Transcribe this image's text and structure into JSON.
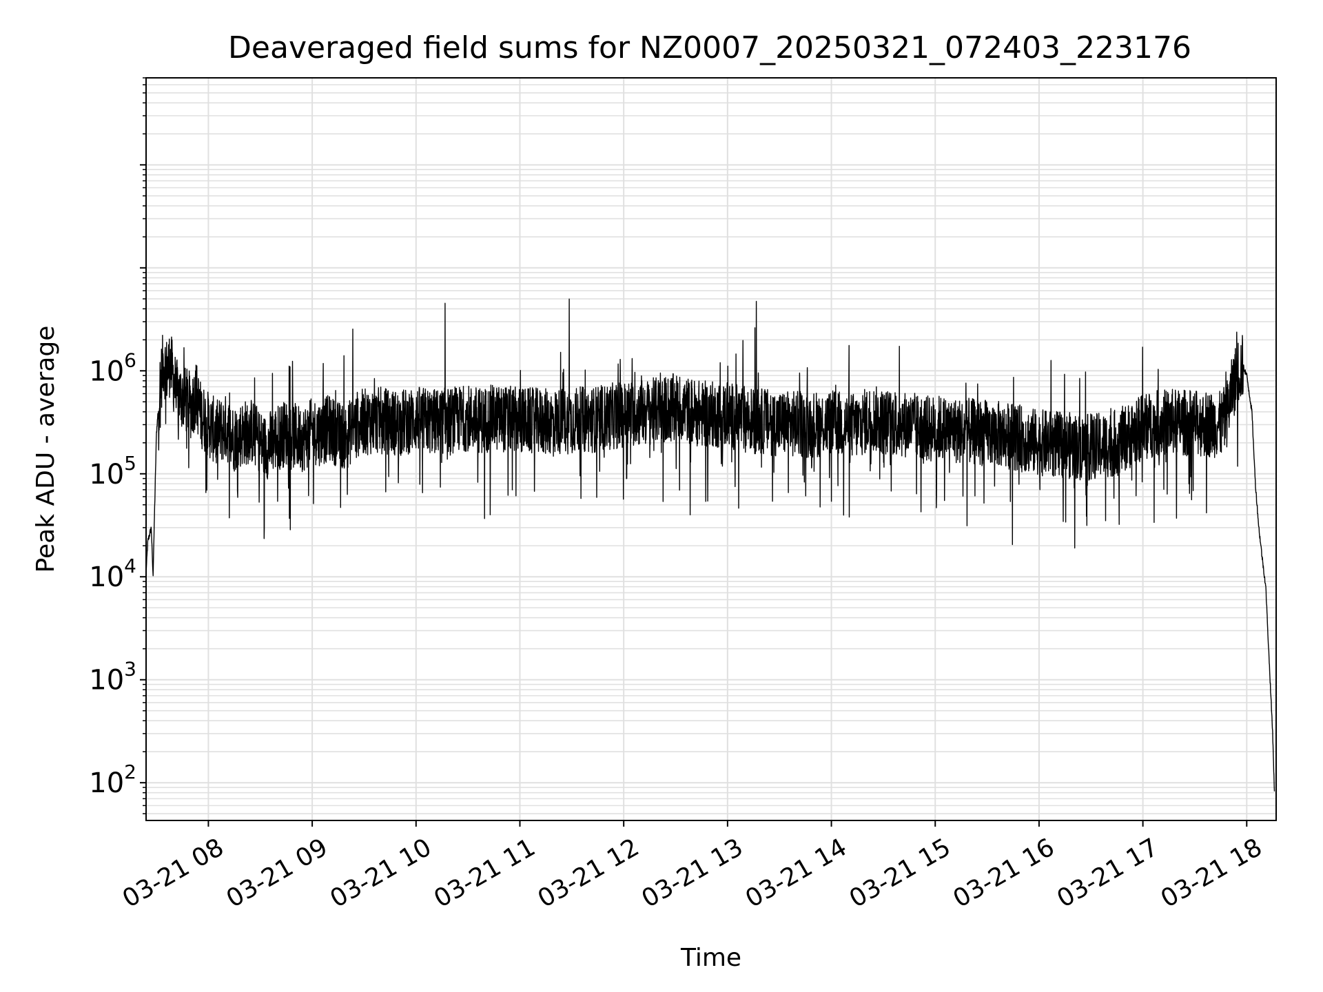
{
  "chart_data": {
    "type": "line",
    "title": "Deaveraged field sums for NZ0007_20250321_072403_223176",
    "xlabel": "Time",
    "ylabel": "Peak ADU - average",
    "y_scale": "log",
    "ylim": [
      43,
      700000000
    ],
    "xlim": [
      "03-21 07:24",
      "03-21 18:17"
    ],
    "grid": true,
    "line_color": "#000000",
    "grid_color": "#e0e0e0",
    "x_ticks": [
      "03-21 08",
      "03-21 09",
      "03-21 10",
      "03-21 11",
      "03-21 12",
      "03-21 13",
      "03-21 14",
      "03-21 15",
      "03-21 16",
      "03-21 17",
      "03-21 18"
    ],
    "y_ticks": [
      {
        "base": "10",
        "exp": "2",
        "value": 100
      },
      {
        "base": "10",
        "exp": "3",
        "value": 1000
      },
      {
        "base": "10",
        "exp": "4",
        "value": 10000
      },
      {
        "base": "10",
        "exp": "5",
        "value": 100000
      },
      {
        "base": "10",
        "exp": "6",
        "value": 1000000
      }
    ],
    "series": [
      {
        "x": [
          "07:24",
          "07:25",
          "07:27",
          "07:28",
          "07:30",
          "07:32",
          "07:34",
          "07:36",
          "07:38",
          "07:40",
          "07:42",
          "07:45",
          "07:48",
          "07:50",
          "07:53",
          "07:55",
          "07:57",
          "08:00",
          "08:05",
          "08:10",
          "08:15",
          "08:20",
          "08:25",
          "08:30",
          "08:33",
          "08:40",
          "08:45",
          "08:50",
          "08:55",
          "09:00",
          "09:05",
          "09:10",
          "09:15",
          "09:20",
          "09:25",
          "09:30",
          "09:40",
          "09:50",
          "10:00",
          "10:10",
          "10:20",
          "10:30",
          "10:37",
          "10:45",
          "11:00",
          "11:15",
          "11:30",
          "11:45",
          "12:00",
          "12:15",
          "12:30",
          "12:45",
          "13:00",
          "13:15",
          "13:30",
          "13:45",
          "14:00",
          "14:15",
          "14:23",
          "14:30",
          "14:45",
          "14:57",
          "15:00",
          "15:15",
          "15:30",
          "15:45",
          "16:00",
          "16:15",
          "16:30",
          "16:45",
          "17:00",
          "17:05",
          "17:15",
          "17:30",
          "17:45",
          "17:48",
          "17:52",
          "17:55",
          "17:58",
          "18:00",
          "18:03",
          "18:05",
          "18:07",
          "18:09",
          "18:11",
          "18:13",
          "18:15",
          "18:16"
        ],
        "y": [
          11000,
          22000,
          30000,
          10000,
          250000,
          700000,
          1200000,
          1000000,
          1200000,
          800000,
          600000,
          550000,
          500000,
          450000,
          600000,
          400000,
          350000,
          300000,
          250000,
          280000,
          220000,
          250000,
          260000,
          200000,
          180000,
          230000,
          250000,
          230000,
          220000,
          260000,
          250000,
          280000,
          240000,
          230000,
          300000,
          320000,
          330000,
          310000,
          340000,
          320000,
          330000,
          350000,
          330000,
          350000,
          330000,
          320000,
          330000,
          340000,
          380000,
          400000,
          450000,
          380000,
          370000,
          330000,
          310000,
          300000,
          310000,
          290000,
          350000,
          320000,
          300000,
          270000,
          280000,
          260000,
          250000,
          230000,
          200000,
          190000,
          180000,
          200000,
          280000,
          300000,
          320000,
          310000,
          300000,
          350000,
          700000,
          1000000,
          1100000,
          900000,
          400000,
          80000,
          30000,
          15000,
          8000,
          1500,
          300,
          80
        ]
      }
    ]
  }
}
